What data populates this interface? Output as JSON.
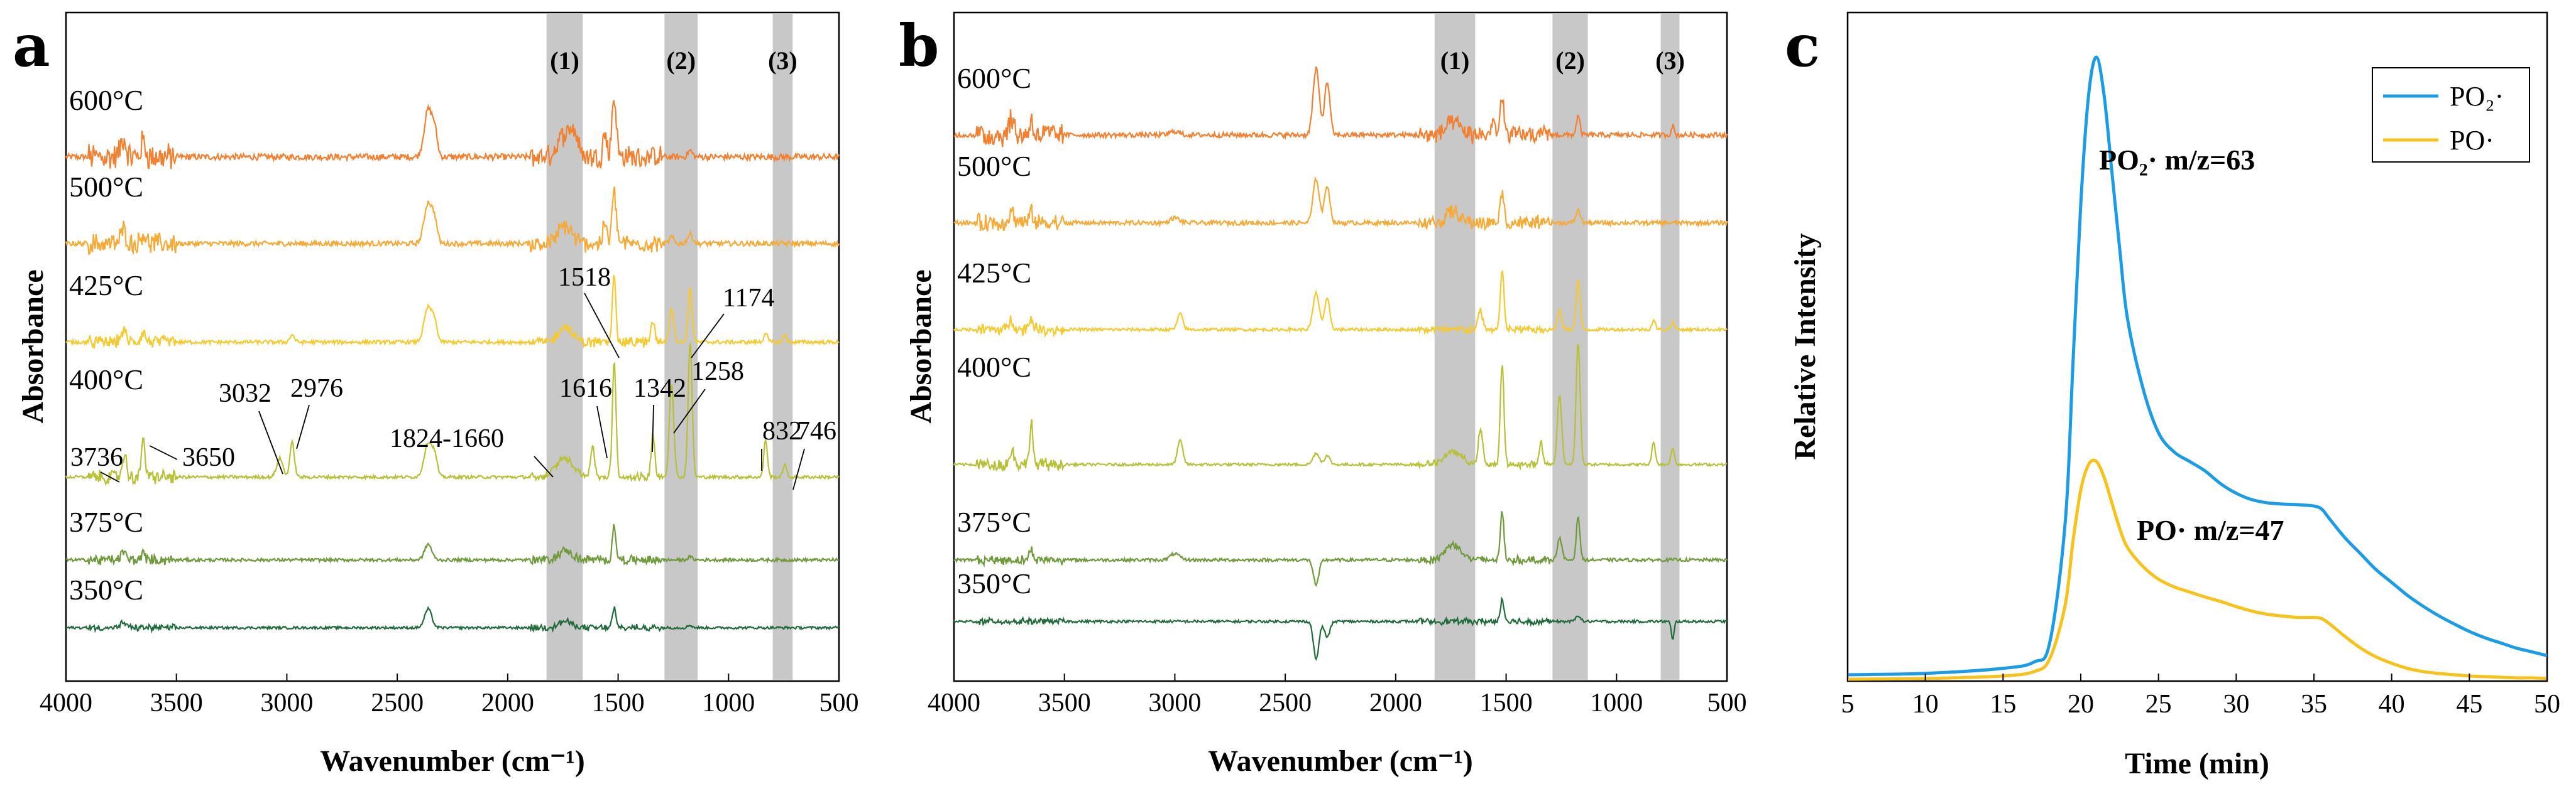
{
  "chart_data": [
    {
      "panel": "a",
      "type": "line",
      "xlabel": "Wavenumber (cm⁻¹)",
      "ylabel": "Absorbance",
      "xlim": [
        4000,
        500
      ],
      "xticks": [
        "4000",
        "3500",
        "3000",
        "2500",
        "2000",
        "1500",
        "1000",
        "500"
      ],
      "bands": [
        {
          "label": "(1)",
          "from": 1824,
          "to": 1660
        },
        {
          "label": "(2)",
          "from": 1290,
          "to": 1140
        },
        {
          "label": "(3)",
          "from": 800,
          "to": 710
        }
      ],
      "series": [
        {
          "name": "600°C",
          "color": "#f28030"
        },
        {
          "name": "500°C",
          "color": "#f7a935"
        },
        {
          "name": "425°C",
          "color": "#f6c92e"
        },
        {
          "name": "400°C",
          "color": "#b8c038"
        },
        {
          "name": "375°C",
          "color": "#6e9a3a"
        },
        {
          "name": "350°C",
          "color": "#1f6b3a"
        }
      ],
      "peak_labels": [
        {
          "text": "3736",
          "x": 3736
        },
        {
          "text": "3650",
          "x": 3650
        },
        {
          "text": "3032",
          "x": 3032
        },
        {
          "text": "2976",
          "x": 2976
        },
        {
          "text": "1824-1660",
          "x": 1742
        },
        {
          "text": "1616",
          "x": 1616
        },
        {
          "text": "1518",
          "x": 1518
        },
        {
          "text": "1342",
          "x": 1342
        },
        {
          "text": "1258",
          "x": 1258
        },
        {
          "text": "1174",
          "x": 1174
        },
        {
          "text": "832",
          "x": 832
        },
        {
          "text": "746",
          "x": 746
        }
      ]
    },
    {
      "panel": "b",
      "type": "line",
      "xlabel": "Wavenumber (cm⁻¹)",
      "ylabel": "Absorbance",
      "xlim": [
        4000,
        500
      ],
      "xticks": [
        "4000",
        "3500",
        "3000",
        "2500",
        "2000",
        "1500",
        "1000",
        "500"
      ],
      "bands": [
        {
          "label": "(1)",
          "from": 1824,
          "to": 1640
        },
        {
          "label": "(2)",
          "from": 1290,
          "to": 1130
        },
        {
          "label": "(3)",
          "from": 800,
          "to": 715
        }
      ],
      "series": [
        {
          "name": "600°C",
          "color": "#f28030"
        },
        {
          "name": "500°C",
          "color": "#f7a935"
        },
        {
          "name": "425°C",
          "color": "#f6c92e"
        },
        {
          "name": "400°C",
          "color": "#b8c038"
        },
        {
          "name": "375°C",
          "color": "#6e9a3a"
        },
        {
          "name": "350°C",
          "color": "#1f6b3a"
        }
      ]
    },
    {
      "panel": "c",
      "type": "line",
      "xlabel": "Time (min)",
      "ylabel": "Relative Intensity",
      "xlim": [
        5,
        50
      ],
      "ylim": [
        0,
        1.05
      ],
      "xticks": [
        "5",
        "10",
        "15",
        "20",
        "25",
        "30",
        "35",
        "40",
        "45",
        "50"
      ],
      "legend": [
        "PO₂·",
        "PO·"
      ],
      "annotations": [
        "PO₂·   m/z=63",
        "PO·    m/z=47"
      ],
      "series": [
        {
          "name": "PO₂·",
          "color": "#1c9be6",
          "x": [
            5,
            10,
            15,
            17,
            18,
            19,
            19.5,
            20,
            20.5,
            21,
            21.5,
            22,
            22.5,
            23,
            24,
            25,
            26,
            27,
            28,
            29,
            30,
            31,
            32,
            33,
            34,
            35,
            35.5,
            36,
            37,
            38,
            39,
            40,
            41,
            42,
            43,
            44,
            45,
            46,
            47,
            48,
            49,
            50
          ],
          "y": [
            0.01,
            0.012,
            0.02,
            0.03,
            0.06,
            0.25,
            0.5,
            0.75,
            0.92,
            0.98,
            0.92,
            0.8,
            0.68,
            0.57,
            0.46,
            0.39,
            0.36,
            0.345,
            0.33,
            0.31,
            0.295,
            0.285,
            0.28,
            0.278,
            0.277,
            0.275,
            0.27,
            0.255,
            0.225,
            0.2,
            0.175,
            0.155,
            0.135,
            0.118,
            0.103,
            0.09,
            0.078,
            0.068,
            0.06,
            0.052,
            0.046,
            0.04
          ]
        },
        {
          "name": "PO·",
          "color": "#f8c21c",
          "x": [
            5,
            10,
            15,
            17,
            18,
            19,
            19.5,
            20,
            20.5,
            21,
            21.5,
            22,
            22.5,
            23,
            24,
            25,
            26,
            27,
            28,
            29,
            30,
            31,
            32,
            33,
            34,
            35,
            35.5,
            36,
            37,
            38,
            39,
            40,
            41,
            42,
            43,
            44,
            45,
            46,
            47,
            48,
            49,
            50
          ],
          "y": [
            0.003,
            0.004,
            0.008,
            0.015,
            0.035,
            0.12,
            0.22,
            0.3,
            0.34,
            0.345,
            0.32,
            0.28,
            0.24,
            0.21,
            0.18,
            0.16,
            0.148,
            0.14,
            0.132,
            0.125,
            0.117,
            0.11,
            0.105,
            0.102,
            0.1,
            0.1,
            0.098,
            0.09,
            0.07,
            0.052,
            0.038,
            0.028,
            0.02,
            0.015,
            0.012,
            0.01,
            0.008,
            0.007,
            0.006,
            0.005,
            0.005,
            0.004
          ]
        }
      ]
    }
  ]
}
